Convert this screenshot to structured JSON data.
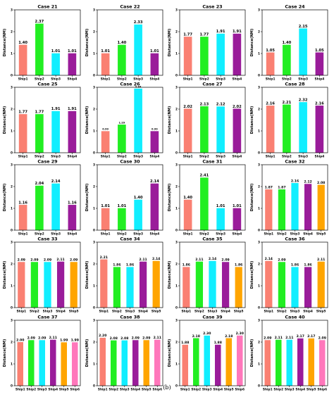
{
  "figure": {
    "caption": "(b)"
  },
  "colors": {
    "Ship1": "#fa8072",
    "Ship2": "#22ee22",
    "Ship3": "#11eeff",
    "Ship4": "#9a1c9a",
    "Ship5": "#ffa500",
    "Ship6": "#ff77bb"
  },
  "chart_data": [
    {
      "type": "bar",
      "title": "Case 21",
      "ylabel": "Distance(NM)",
      "ylim": [
        0,
        3
      ],
      "yticks": [
        0,
        1,
        2,
        3
      ],
      "categories": [
        "Ship1",
        "Ship2",
        "Ship3",
        "Ship4"
      ],
      "values": [
        1.4,
        2.37,
        1.01,
        1.01
      ],
      "labels": [
        "1.40",
        "2.37",
        "1.01",
        "1.01"
      ]
    },
    {
      "type": "bar",
      "title": "Case 22",
      "ylabel": "Distance(NM)",
      "ylim": [
        0,
        3
      ],
      "yticks": [
        0,
        1,
        2,
        3
      ],
      "categories": [
        "Ship1",
        "Ship2",
        "Ship3",
        "Ship4"
      ],
      "values": [
        1.01,
        1.4,
        2.33,
        1.01
      ],
      "labels": [
        "1.01",
        "1.40",
        "2.33",
        "1.01"
      ]
    },
    {
      "type": "bar",
      "title": "Case 23",
      "ylabel": "Distance(NM)",
      "ylim": [
        0,
        3
      ],
      "yticks": [
        0,
        1,
        2,
        3
      ],
      "categories": [
        "Ship1",
        "Ship2",
        "Ship3",
        "Ship4"
      ],
      "values": [
        1.77,
        1.77,
        1.91,
        1.91
      ],
      "labels": [
        "1.77",
        "1.77",
        "1.91",
        "1.91"
      ]
    },
    {
      "type": "bar",
      "title": "Case 24",
      "ylabel": "Distance(NM)",
      "ylim": [
        0,
        3
      ],
      "yticks": [
        0,
        1,
        2,
        3
      ],
      "categories": [
        "Ship1",
        "Ship2",
        "Ship3",
        "Ship4"
      ],
      "values": [
        1.05,
        1.4,
        2.15,
        1.05
      ],
      "labels": [
        "1.05",
        "1.40",
        "2.15",
        "1.05"
      ]
    },
    {
      "type": "bar",
      "title": "Case 25",
      "ylabel": "Distance(NM)",
      "ylim": [
        0,
        3
      ],
      "yticks": [
        0,
        1,
        2,
        3
      ],
      "categories": [
        "Ship1",
        "Ship2",
        "Ship3",
        "Ship4"
      ],
      "values": [
        1.77,
        1.77,
        1.91,
        1.91
      ],
      "labels": [
        "1.77",
        "1.77",
        "1.91",
        "1.91"
      ]
    },
    {
      "type": "bar",
      "title": "Case 26",
      "ylabel": "Distance(NM)",
      "ylim": [
        0,
        3
      ],
      "yticks": [
        0,
        1,
        2,
        3
      ],
      "categories": [
        "Ship1",
        "Ship2",
        "Ship3",
        "Ship4"
      ],
      "values": [
        0.99,
        1.29,
        2.94,
        0.99
      ],
      "labels": [
        "0.99",
        "1.29",
        "2.94",
        "0.99"
      ],
      "label_size": "small"
    },
    {
      "type": "bar",
      "title": "Case 27",
      "ylabel": "Distance(NM)",
      "ylim": [
        0,
        3
      ],
      "yticks": [
        0,
        1,
        2,
        3
      ],
      "categories": [
        "Ship1",
        "Ship2",
        "Ship3",
        "Ship4"
      ],
      "values": [
        2.02,
        2.13,
        2.12,
        2.02
      ],
      "labels": [
        "2.02",
        "2.13",
        "2.12",
        "2.02"
      ]
    },
    {
      "type": "bar",
      "title": "Case 28",
      "ylabel": "Distance(NM)",
      "ylim": [
        0,
        3
      ],
      "yticks": [
        0,
        1,
        2,
        3
      ],
      "categories": [
        "Ship1",
        "Ship2",
        "Ship3",
        "Ship4"
      ],
      "values": [
        2.16,
        2.21,
        2.32,
        2.16
      ],
      "labels": [
        "2.16",
        "2.21",
        "2.32",
        "2.16"
      ]
    },
    {
      "type": "bar",
      "title": "Case 29",
      "ylabel": "Distance(NM)",
      "ylim": [
        0,
        3
      ],
      "yticks": [
        0,
        1,
        2,
        3
      ],
      "categories": [
        "Ship1",
        "Ship2",
        "Ship3",
        "Ship4"
      ],
      "values": [
        1.16,
        2.04,
        2.14,
        1.16
      ],
      "labels": [
        "1.16",
        "2.04",
        "2.14",
        "1.16"
      ]
    },
    {
      "type": "bar",
      "title": "Case 30",
      "ylabel": "Distance(NM)",
      "ylim": [
        0,
        3
      ],
      "yticks": [
        0,
        1,
        2,
        3
      ],
      "categories": [
        "Ship1",
        "Ship2",
        "Ship3",
        "Ship4"
      ],
      "values": [
        1.01,
        1.01,
        1.4,
        2.14
      ],
      "labels": [
        "1.01",
        "1.01",
        "1.40",
        "2.14"
      ]
    },
    {
      "type": "bar",
      "title": "Case 31",
      "ylabel": "Distance(NM)",
      "ylim": [
        0,
        3
      ],
      "yticks": [
        0,
        1,
        2,
        3
      ],
      "categories": [
        "Ship1",
        "Ship2",
        "Ship3",
        "Ship4"
      ],
      "values": [
        1.4,
        2.41,
        1.01,
        1.01
      ],
      "labels": [
        "1.40",
        "2.41",
        "1.01",
        "1.01"
      ]
    },
    {
      "type": "bar",
      "title": "Case 32",
      "ylabel": "Distance(NM)",
      "ylim": [
        0,
        3
      ],
      "yticks": [
        0,
        1,
        2,
        3
      ],
      "categories": [
        "Ship1",
        "Ship2",
        "Ship3",
        "Ship4",
        "Ship5"
      ],
      "values": [
        1.87,
        1.87,
        2.16,
        2.12,
        2.08
      ],
      "labels": [
        "1.87",
        "1.87",
        "2.16",
        "2.12",
        "2.08"
      ]
    },
    {
      "type": "bar",
      "title": "Case 33",
      "ylabel": "Distance(NM)",
      "ylim": [
        0,
        3
      ],
      "yticks": [
        0,
        1,
        2,
        3
      ],
      "categories": [
        "Ship1",
        "Ship2",
        "Ship3",
        "Ship4",
        "Ship5"
      ],
      "values": [
        2.09,
        2.09,
        2.09,
        2.11,
        2.09
      ],
      "labels": [
        "2.09",
        "2.09",
        "2.09",
        "2.11",
        "2.09"
      ]
    },
    {
      "type": "bar",
      "title": "Case 34",
      "ylabel": "Distance(NM)",
      "ylim": [
        0,
        3
      ],
      "yticks": [
        0,
        1,
        2,
        3
      ],
      "categories": [
        "Ship1",
        "Ship2",
        "Ship3",
        "Ship4",
        "Ship5"
      ],
      "values": [
        2.21,
        1.86,
        1.86,
        2.11,
        2.14
      ],
      "labels": [
        "2.21",
        "1.86",
        "1.86",
        "2.11",
        "2.14"
      ]
    },
    {
      "type": "bar",
      "title": "Case 35",
      "ylabel": "Distance(NM)",
      "ylim": [
        0,
        3
      ],
      "yticks": [
        0,
        1,
        2,
        3
      ],
      "categories": [
        "Ship1",
        "Ship2",
        "Ship3",
        "Ship4",
        "Ship5"
      ],
      "values": [
        1.86,
        2.11,
        2.14,
        2.09,
        1.86
      ],
      "labels": [
        "1.86",
        "2.11",
        "2.14",
        "2.09",
        "1.86"
      ]
    },
    {
      "type": "bar",
      "title": "Case 36",
      "ylabel": "Distance(NM)",
      "ylim": [
        0,
        3
      ],
      "yticks": [
        0,
        1,
        2,
        3
      ],
      "categories": [
        "Ship1",
        "Ship2",
        "Ship3",
        "Ship4",
        "Ship5"
      ],
      "values": [
        2.14,
        2.09,
        1.86,
        1.86,
        2.11
      ],
      "labels": [
        "2.14",
        "2.09",
        "1.86",
        "1.86",
        "2.11"
      ]
    },
    {
      "type": "bar",
      "title": "Case 37",
      "ylabel": "Distance(NM)",
      "ylim": [
        0,
        3
      ],
      "yticks": [
        0,
        1,
        2,
        3
      ],
      "categories": [
        "Ship1",
        "Ship2",
        "Ship3",
        "Ship4",
        "Ship5",
        "Ship6"
      ],
      "values": [
        2.0,
        2.09,
        2.09,
        2.11,
        1.99,
        1.99
      ],
      "labels": [
        "2.00",
        "2.09",
        "2.09",
        "2.11",
        "1.99",
        "1.99"
      ]
    },
    {
      "type": "bar",
      "title": "Case 38",
      "ylabel": "Distance(NM)",
      "ylim": [
        0,
        3
      ],
      "yticks": [
        0,
        1,
        2,
        3
      ],
      "categories": [
        "Ship1",
        "Ship2",
        "Ship3",
        "Ship4",
        "Ship5",
        "Ship6"
      ],
      "values": [
        2.2,
        2.08,
        2.08,
        2.09,
        2.09,
        2.11
      ],
      "labels": [
        "2.20",
        "2.08",
        "2.08",
        "2.09",
        "2.09",
        "2.11"
      ]
    },
    {
      "type": "bar",
      "title": "Case 39",
      "ylabel": "Distance(NM)",
      "ylim": [
        0,
        3
      ],
      "yticks": [
        0,
        1,
        2,
        3
      ],
      "categories": [
        "Ship1",
        "Ship2",
        "Ship3",
        "Ship4",
        "Ship5",
        "Ship6"
      ],
      "values": [
        1.88,
        2.18,
        2.3,
        1.88,
        2.18,
        2.3
      ],
      "labels": [
        "1.88",
        "2.18",
        "2.30",
        "1.88",
        "2.18",
        "2.30"
      ]
    },
    {
      "type": "bar",
      "title": "Case 40",
      "ylabel": "Distance(NM)",
      "ylim": [
        0,
        3
      ],
      "yticks": [
        0,
        1,
        2,
        3
      ],
      "categories": [
        "Ship1",
        "Ship2",
        "Ship3",
        "Ship4",
        "Ship5",
        "Ship6"
      ],
      "values": [
        2.09,
        2.11,
        2.11,
        2.17,
        2.17,
        2.09
      ],
      "labels": [
        "2.09",
        "2.11",
        "2.11",
        "2.17",
        "2.17",
        "2.09"
      ]
    }
  ]
}
